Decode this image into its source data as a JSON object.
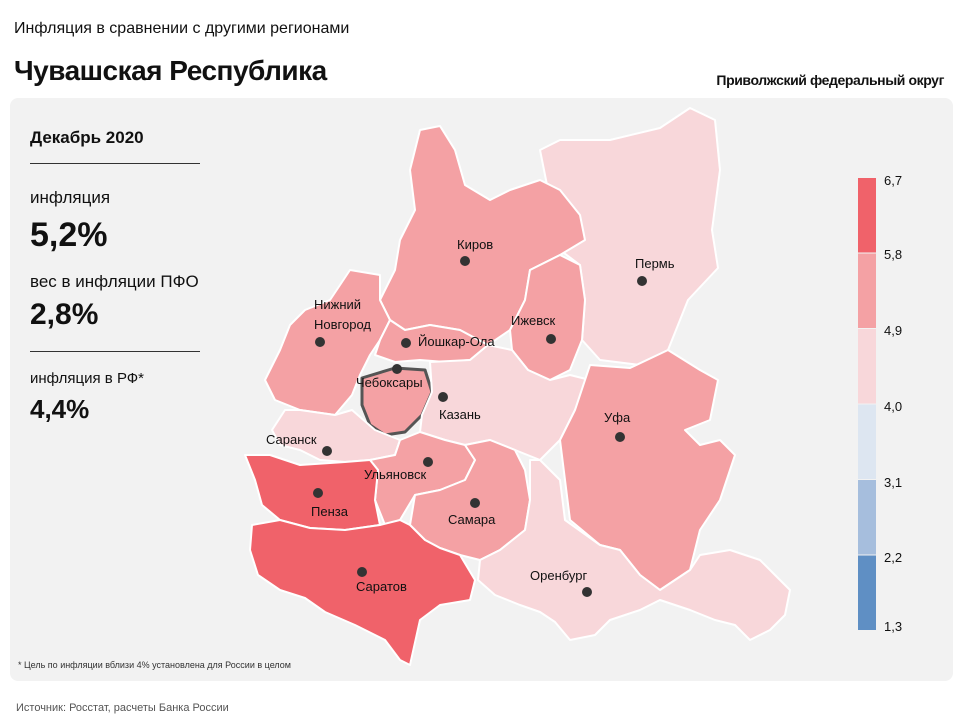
{
  "header": {
    "supertitle": "Инфляция в сравнении с другими регионами",
    "title": "Чувашская Республика",
    "district": "Приволжский федеральный округ"
  },
  "stats": {
    "period": "Декабрь 2020",
    "inflation_label": "инфляция",
    "inflation_value": "5,2%",
    "weight_label": "вес в инфляции  ПФО",
    "weight_value": "2,8%",
    "rf_label": "инфляция  в РФ*",
    "rf_value": "4,4%"
  },
  "scale": {
    "ticks": [
      "6,7",
      "5,8",
      "4,9",
      "4,0",
      "3,1",
      "2,2",
      "1,3"
    ],
    "colors": [
      "#f0626a",
      "#f4a1a4",
      "#f8d7da",
      "#dde6f1",
      "#a6bedd",
      "#5f8fc4"
    ]
  },
  "cities": [
    {
      "name": "Киров"
    },
    {
      "name": "Пермь"
    },
    {
      "name": "Нижний\nНовгород",
      "line1": "Нижний",
      "line2": "Новгород"
    },
    {
      "name": "Йошкар-Ола"
    },
    {
      "name": "Ижевск"
    },
    {
      "name": "Чебоксары"
    },
    {
      "name": "Казань"
    },
    {
      "name": "Саранск"
    },
    {
      "name": "Уфа"
    },
    {
      "name": "Ульяновск"
    },
    {
      "name": "Пенза"
    },
    {
      "name": "Самара"
    },
    {
      "name": "Саратов"
    },
    {
      "name": "Оренбург"
    }
  ],
  "footnote": "* Цель по инфляции вблизи 4% установлена для России в целом",
  "source": "Источник: Росстат, расчеты Банка России"
}
